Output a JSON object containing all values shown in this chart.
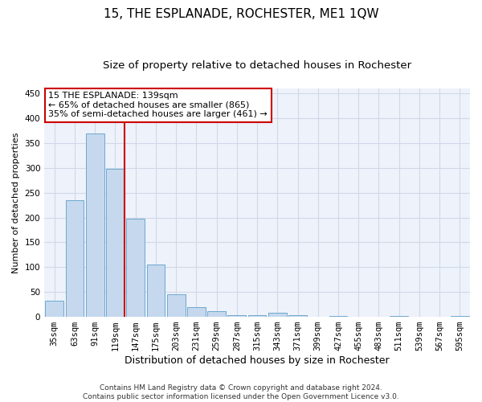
{
  "title": "15, THE ESPLANADE, ROCHESTER, ME1 1QW",
  "subtitle": "Size of property relative to detached houses in Rochester",
  "xlabel": "Distribution of detached houses by size in Rochester",
  "ylabel": "Number of detached properties",
  "categories": [
    "35sqm",
    "63sqm",
    "91sqm",
    "119sqm",
    "147sqm",
    "175sqm",
    "203sqm",
    "231sqm",
    "259sqm",
    "287sqm",
    "315sqm",
    "343sqm",
    "371sqm",
    "399sqm",
    "427sqm",
    "455sqm",
    "483sqm",
    "511sqm",
    "539sqm",
    "567sqm",
    "595sqm"
  ],
  "values": [
    33,
    235,
    370,
    298,
    197,
    105,
    46,
    20,
    11,
    4,
    4,
    9,
    4,
    0,
    2,
    0,
    0,
    1,
    0,
    0,
    2
  ],
  "bar_color": "#c5d8ed",
  "bar_edge_color": "#6fa8d0",
  "grid_color": "#d0d8e8",
  "background_color": "#eef2fa",
  "vline_color": "#cc0000",
  "annotation_text": "15 THE ESPLANADE: 139sqm\n← 65% of detached houses are smaller (865)\n35% of semi-detached houses are larger (461) →",
  "annotation_box_color": "#ffffff",
  "annotation_box_edge": "#cc0000",
  "footer_line1": "Contains HM Land Registry data © Crown copyright and database right 2024.",
  "footer_line2": "Contains public sector information licensed under the Open Government Licence v3.0.",
  "ylim": [
    0,
    460
  ],
  "title_fontsize": 11,
  "subtitle_fontsize": 9.5,
  "xlabel_fontsize": 9,
  "ylabel_fontsize": 8,
  "tick_fontsize": 7.5,
  "annotation_fontsize": 8,
  "footer_fontsize": 6.5
}
